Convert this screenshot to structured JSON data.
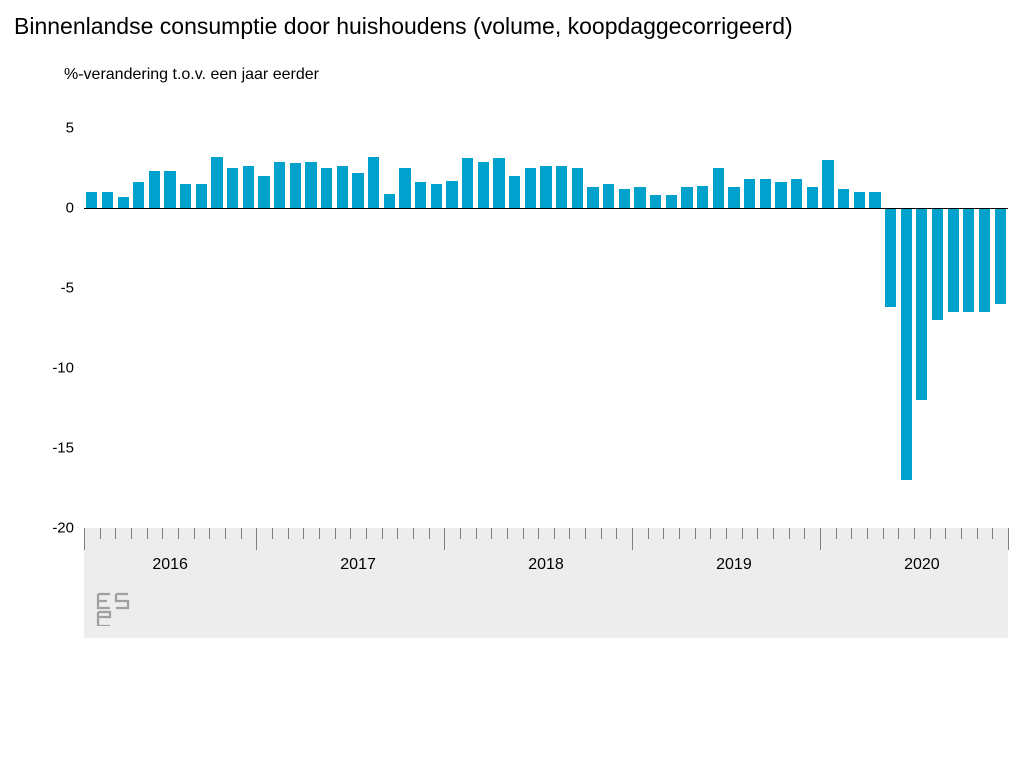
{
  "chart": {
    "type": "bar",
    "title": "Binnenlandse consumptie door huishoudens (volume, koopdaggecorrigeerd)",
    "subtitle": "%-verandering t.o.v. een jaar eerder",
    "title_fontsize": 23,
    "subtitle_fontsize": 16,
    "background_color": "#ffffff",
    "axis_band_color": "#ededed",
    "bar_color": "#00a1cd",
    "text_color": "#000000",
    "tick_color": "#808080",
    "logo_color": "#a0a0a0",
    "ylim": [
      -20,
      5
    ],
    "ytick_step": 5,
    "yticks": [
      5,
      0,
      -5,
      -10,
      -15,
      -20
    ],
    "year_labels": [
      "2016",
      "2017",
      "2018",
      "2019",
      "2020"
    ],
    "year_positions": [
      5,
      17,
      29,
      41,
      53
    ],
    "n_months": 59,
    "bar_width_ratio": 0.72,
    "values": [
      1.0,
      1.0,
      0.7,
      1.6,
      2.3,
      2.3,
      1.5,
      1.5,
      3.2,
      2.5,
      2.6,
      2.0,
      2.9,
      2.8,
      2.9,
      2.5,
      2.6,
      2.2,
      3.2,
      0.9,
      2.5,
      1.6,
      1.5,
      1.7,
      3.1,
      2.9,
      3.1,
      2.0,
      2.5,
      2.6,
      2.6,
      2.5,
      1.3,
      1.5,
      1.2,
      1.3,
      0.8,
      0.8,
      1.3,
      1.4,
      2.5,
      1.3,
      1.8,
      1.8,
      1.6,
      1.8,
      1.3,
      3.0,
      1.2,
      1.0,
      1.0,
      -6.2,
      -17.0,
      -12.0,
      -7.0,
      -6.5,
      -6.5,
      -6.5,
      -6.0
    ]
  }
}
